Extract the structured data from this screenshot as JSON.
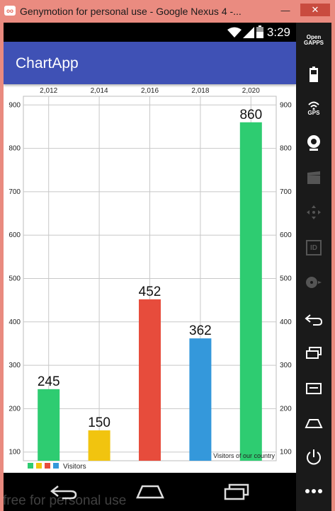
{
  "window": {
    "title": "Genymotion for personal use - Google Nexus 4 -...",
    "app_icon_text": "oo",
    "minimize_glyph": "—",
    "close_glyph": "✕"
  },
  "statusbar": {
    "time": "3:29"
  },
  "appbar": {
    "title": "ChartApp"
  },
  "side_panel": {
    "opengapps_line1": "Open",
    "opengapps_line2": "GAPPS",
    "gps_label": "GPS",
    "id_label": "ID"
  },
  "watermark": "free for personal use",
  "chart_data": {
    "type": "bar",
    "x": [
      2012,
      2014,
      2016,
      2018,
      2020
    ],
    "x_tick_labels": [
      "2,012",
      "2,014",
      "2,016",
      "2,018",
      "2,020"
    ],
    "values": [
      245,
      150,
      452,
      362,
      860
    ],
    "value_labels": [
      "245",
      "150",
      "452",
      "362",
      "860"
    ],
    "colors": [
      "#2ecc71",
      "#f1c40f",
      "#e74c3c",
      "#3498db",
      "#2ecc71"
    ],
    "y_ticks": [
      100,
      200,
      300,
      400,
      500,
      600,
      700,
      800,
      900
    ],
    "ylim": [
      80,
      920
    ],
    "grid": true,
    "legend": {
      "position": "bottom-left",
      "label": "Visitors",
      "colors": [
        "#2ecc71",
        "#f1c40f",
        "#e74c3c",
        "#3498db"
      ]
    },
    "description": "Visitors of our country"
  }
}
